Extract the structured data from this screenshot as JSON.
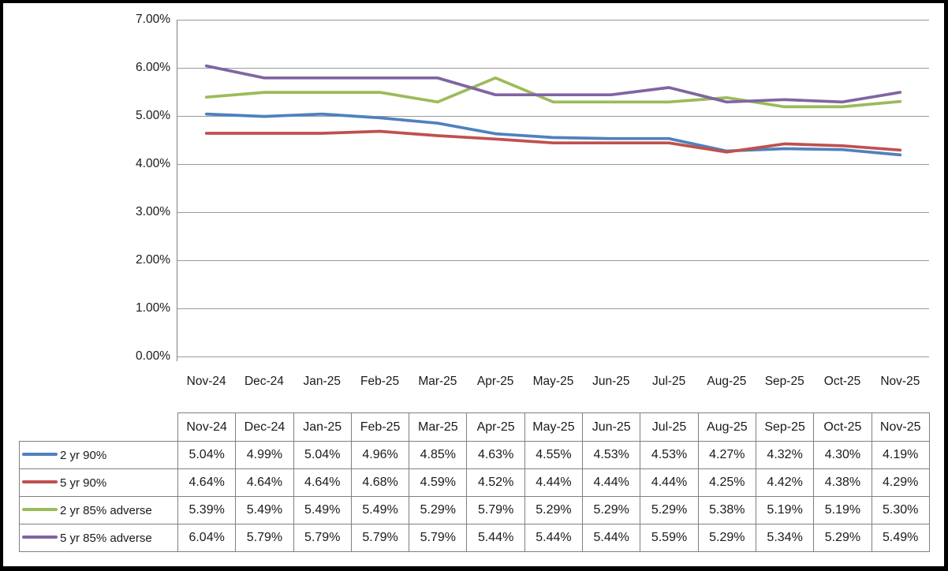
{
  "chart_data": {
    "type": "line",
    "title": "",
    "xlabel": "",
    "ylabel": "",
    "categories": [
      "Nov-24",
      "Dec-24",
      "Jan-25",
      "Feb-25",
      "Mar-25",
      "Apr-25",
      "May-25",
      "Jun-25",
      "Jul-25",
      "Aug-25",
      "Sep-25",
      "Oct-25",
      "Nov-25"
    ],
    "series": [
      {
        "name": "2 yr 90%",
        "color": "#4F81BD",
        "values": [
          5.04,
          4.99,
          5.04,
          4.96,
          4.85,
          4.63,
          4.55,
          4.53,
          4.53,
          4.27,
          4.32,
          4.3,
          4.19
        ]
      },
      {
        "name": "5 yr 90%",
        "color": "#C0504D",
        "values": [
          4.64,
          4.64,
          4.64,
          4.68,
          4.59,
          4.52,
          4.44,
          4.44,
          4.44,
          4.25,
          4.42,
          4.38,
          4.29
        ]
      },
      {
        "name": "2 yr 85% adverse",
        "color": "#9BBB59",
        "values": [
          5.39,
          5.49,
          5.49,
          5.49,
          5.29,
          5.79,
          5.29,
          5.29,
          5.29,
          5.38,
          5.19,
          5.19,
          5.3
        ]
      },
      {
        "name": "5 yr 85% adverse",
        "color": "#8064A2",
        "values": [
          6.04,
          5.79,
          5.79,
          5.79,
          5.79,
          5.44,
          5.44,
          5.44,
          5.59,
          5.29,
          5.34,
          5.29,
          5.49
        ]
      }
    ],
    "ylim": [
      0,
      7
    ],
    "ytick_step": 1,
    "ytick_labels": [
      "0.00%",
      "1.00%",
      "2.00%",
      "3.00%",
      "4.00%",
      "5.00%",
      "6.00%",
      "7.00%"
    ],
    "grid": true,
    "legend_position": "table-left-column"
  },
  "table": {
    "columns": [
      "Nov-24",
      "Dec-24",
      "Jan-25",
      "Feb-25",
      "Mar-25",
      "Apr-25",
      "May-25",
      "Jun-25",
      "Jul-25",
      "Aug-25",
      "Sep-25",
      "Oct-25",
      "Nov-25"
    ],
    "rows": [
      {
        "label": "2 yr 90%",
        "color": "#4F81BD",
        "values": [
          "5.04%",
          "4.99%",
          "5.04%",
          "4.96%",
          "4.85%",
          "4.63%",
          "4.55%",
          "4.53%",
          "4.53%",
          "4.27%",
          "4.32%",
          "4.30%",
          "4.19%"
        ]
      },
      {
        "label": "5 yr 90%",
        "color": "#C0504D",
        "values": [
          "4.64%",
          "4.64%",
          "4.64%",
          "4.68%",
          "4.59%",
          "4.52%",
          "4.44%",
          "4.44%",
          "4.44%",
          "4.25%",
          "4.42%",
          "4.38%",
          "4.29%"
        ]
      },
      {
        "label": "2 yr 85% adverse",
        "color": "#9BBB59",
        "values": [
          "5.39%",
          "5.49%",
          "5.49%",
          "5.49%",
          "5.29%",
          "5.79%",
          "5.29%",
          "5.29%",
          "5.29%",
          "5.38%",
          "5.19%",
          "5.19%",
          "5.30%"
        ]
      },
      {
        "label": "5 yr 85% adverse",
        "color": "#8064A2",
        "values": [
          "6.04%",
          "5.79%",
          "5.79%",
          "5.79%",
          "5.79%",
          "5.44%",
          "5.44%",
          "5.44%",
          "5.59%",
          "5.29%",
          "5.34%",
          "5.29%",
          "5.49%"
        ]
      }
    ]
  },
  "colors": {
    "gridline": "#9a9a9a",
    "axis": "#808080",
    "table_border": "#808080",
    "frame": "#000000"
  }
}
